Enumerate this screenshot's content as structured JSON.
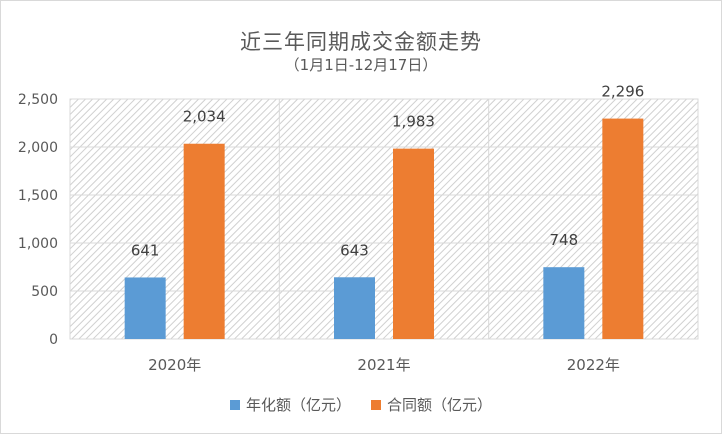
{
  "chart_data": {
    "type": "bar",
    "title": "近三年同期成交金额走势",
    "subtitle": "（1月1日-12月17日）",
    "categories": [
      "2020年",
      "2021年",
      "2022年"
    ],
    "series": [
      {
        "name": "年化额（亿元）",
        "values": [
          641,
          643,
          748
        ],
        "labels": [
          "641",
          "643",
          "748"
        ],
        "color": "#5b9bd5"
      },
      {
        "name": "合同额（亿元）",
        "values": [
          2034,
          1983,
          2296
        ],
        "labels": [
          "2,034",
          "1,983",
          "2,296"
        ],
        "color": "#ed7d31"
      }
    ],
    "yticks": [
      0,
      500,
      1000,
      1500,
      2000,
      2500
    ],
    "ytick_labels": [
      "0",
      "500",
      "1,000",
      "1,500",
      "2,000",
      "2,500"
    ],
    "ylim": [
      0,
      2500
    ],
    "xlabel": "",
    "ylabel": "",
    "grid": true,
    "plot_background": "hatched",
    "legend": "bottom"
  }
}
